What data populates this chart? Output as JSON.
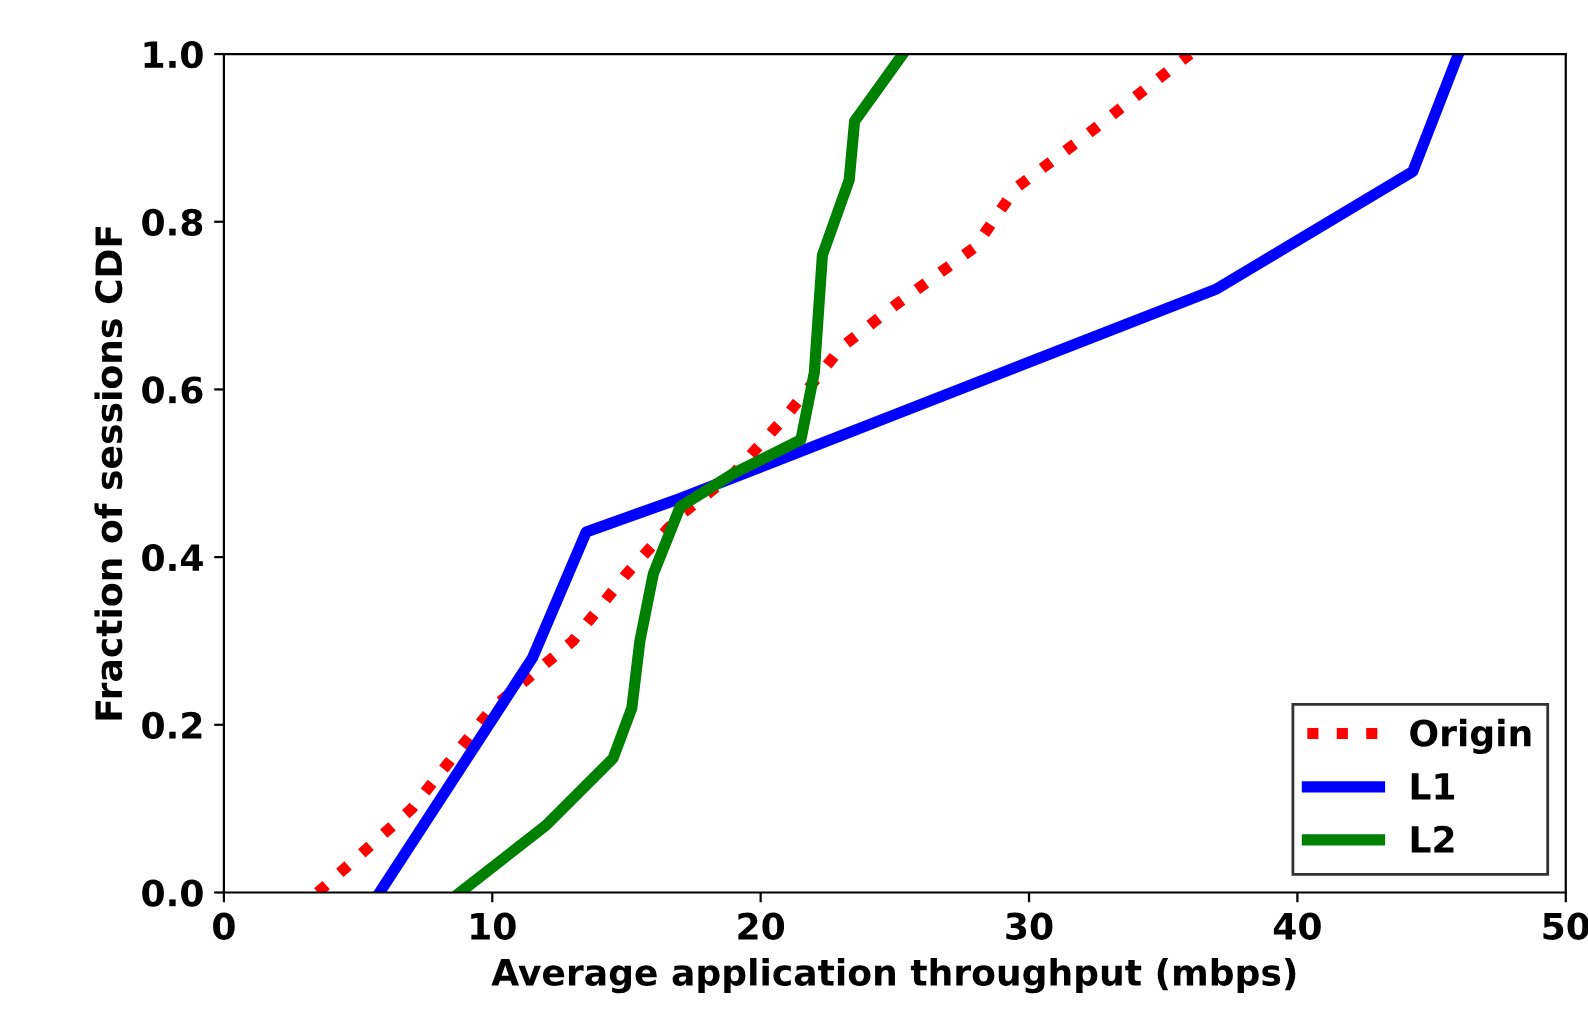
{
  "chart_data": {
    "type": "line",
    "xlabel": "Average application throughput (mbps)",
    "ylabel": "Fraction of sessions CDF",
    "xlim": [
      0,
      50
    ],
    "xticks": [
      0,
      10,
      20,
      30,
      40,
      50
    ],
    "ylim": [
      0,
      1.0
    ],
    "yticks": [
      {
        "value": 0,
        "label": "0.0"
      },
      {
        "value": 0.2,
        "label": "0.2"
      },
      {
        "value": 0.4,
        "label": "0.4"
      },
      {
        "value": 0.6,
        "label": "0.6"
      },
      {
        "value": 0.8,
        "label": "0.8"
      },
      {
        "value": 1.0,
        "label": "1.0"
      }
    ],
    "grid": false,
    "legend": "bottom right",
    "series": [
      {
        "name": "Origin",
        "color": "#ff0000",
        "line_style": "dotted",
        "x": [
          3.5,
          7,
          10,
          13,
          15,
          17,
          19,
          21,
          23,
          25,
          28,
          29.5,
          32,
          36
        ],
        "values": [
          0,
          0.1,
          0.22,
          0.3,
          0.38,
          0.45,
          0.5,
          0.57,
          0.65,
          0.7,
          0.77,
          0.84,
          0.9,
          1.0
        ]
      },
      {
        "name": "L1",
        "color": "#0000ff",
        "line_style": "solid",
        "x": [
          5.8,
          11.5,
          13.5,
          17,
          25,
          37,
          44.3,
          46
        ],
        "values": [
          0,
          0.28,
          0.43,
          0.47,
          0.57,
          0.72,
          0.86,
          1.0
        ]
      },
      {
        "name": "L2",
        "color": "#008000",
        "line_style": "solid",
        "x": [
          8.8,
          12,
          14.5,
          15.2,
          15.5,
          16,
          17,
          19,
          21.5,
          22,
          22.3,
          23.3,
          23.5,
          25.3
        ],
        "values": [
          0,
          0.08,
          0.16,
          0.22,
          0.3,
          0.38,
          0.46,
          0.5,
          0.54,
          0.62,
          0.76,
          0.85,
          0.92,
          1.0
        ]
      }
    ]
  }
}
